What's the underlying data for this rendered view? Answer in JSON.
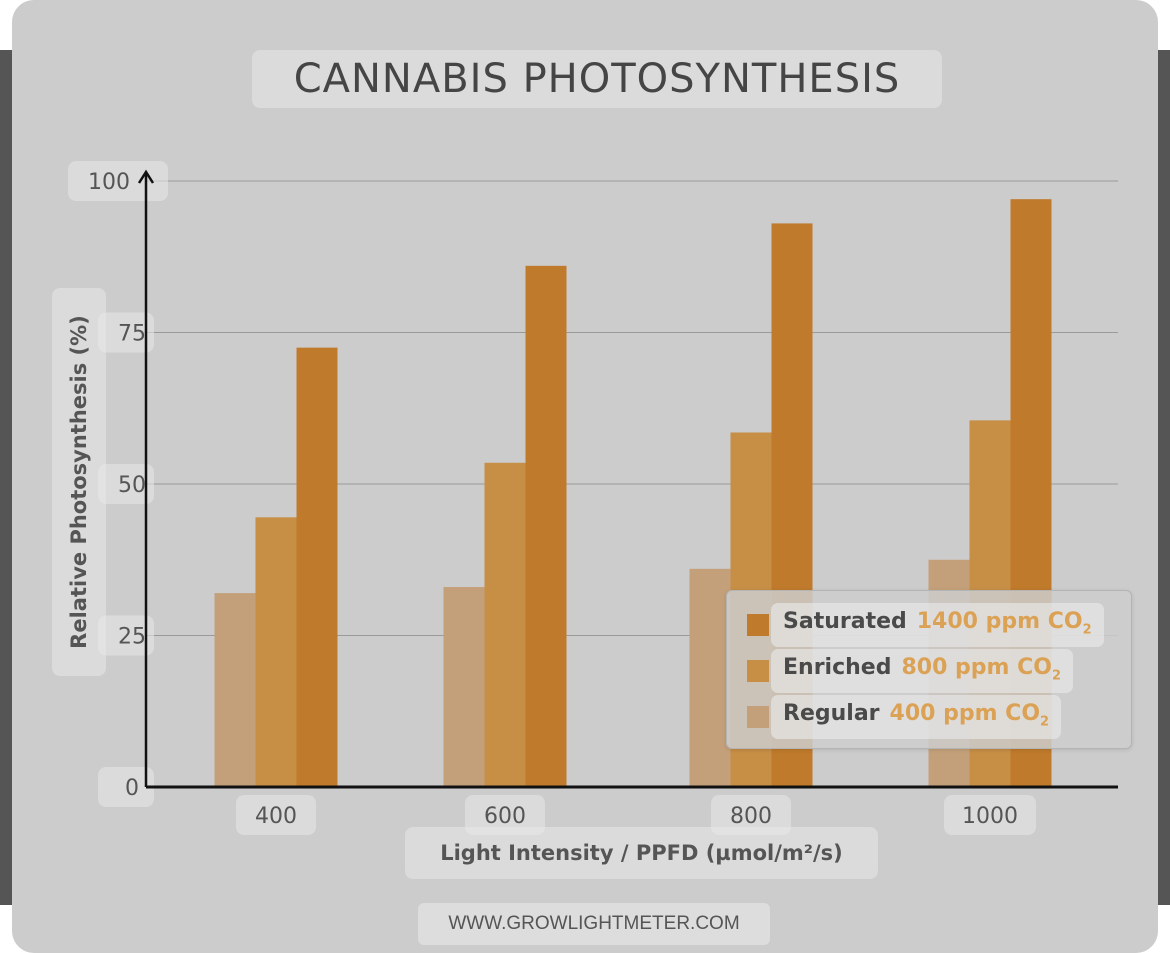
{
  "colors": {
    "regular": "#c4a07a",
    "enriched": "#c78e45",
    "saturated": "#bf7a2b",
    "legend_sub": "#dba255",
    "grid": "#9a9a9a",
    "axis": "#111111"
  },
  "chart_data": {
    "type": "bar",
    "title": "CANNABIS PHOTOSYNTHESIS",
    "xlabel": "Light Intensity / PPFD (µmol/m²/s)",
    "ylabel": "Relative Photosynthesis (%)",
    "categories": [
      "400",
      "600",
      "800",
      "1000"
    ],
    "yticks": [
      "0",
      "25",
      "50",
      "75",
      "100"
    ],
    "ylim": [
      0,
      100
    ],
    "grid": true,
    "legend_position": "bottom-right",
    "series": [
      {
        "key": "regular",
        "name": "Regular",
        "sub": "400 ppm CO",
        "subscript": "2",
        "values": [
          32,
          33,
          36,
          37.5
        ]
      },
      {
        "key": "enriched",
        "name": "Enriched",
        "sub": "800 ppm CO",
        "subscript": "2",
        "values": [
          44.5,
          53.5,
          58.5,
          60.5
        ]
      },
      {
        "key": "saturated",
        "name": "Saturated",
        "sub": "1400 ppm CO",
        "subscript": "2",
        "values": [
          72.5,
          86,
          93,
          97
        ]
      }
    ]
  },
  "footer": "WWW.GROWLIGHTMETER.COM"
}
